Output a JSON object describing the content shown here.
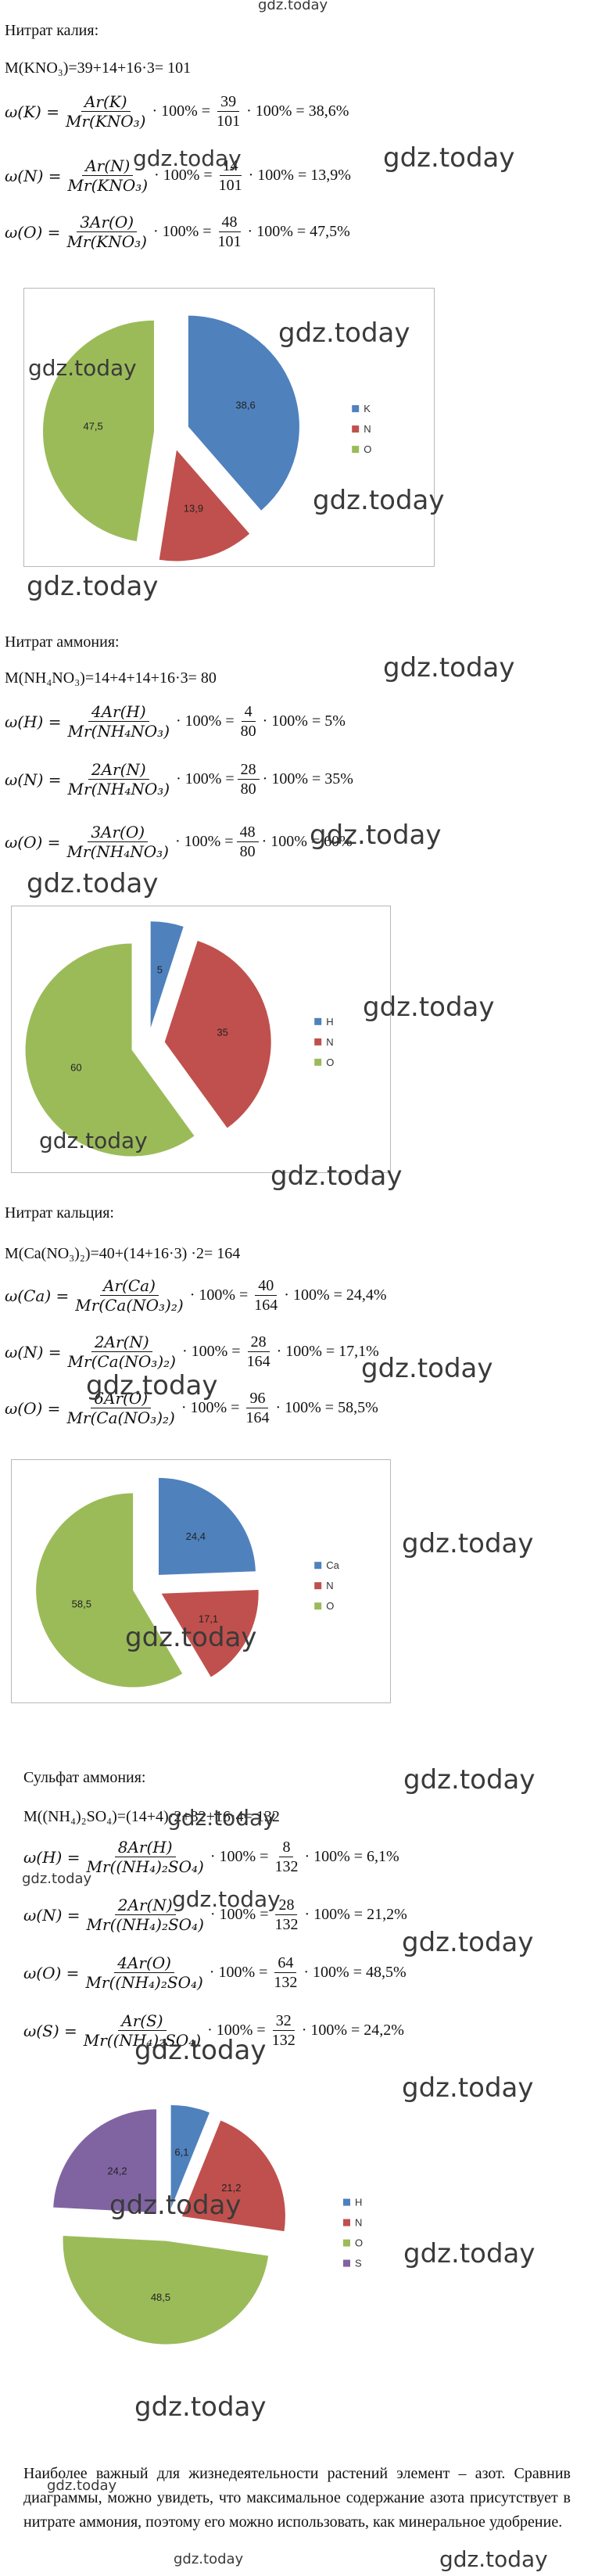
{
  "watermark": {
    "text": "gdz.today"
  },
  "sections": [
    {
      "title": "Нитрат  калия:",
      "molar": "M(KNO₃)=39+14+16·3= 101",
      "formulas": [
        {
          "lhs": "ω(K) =",
          "num": "Ar(K)",
          "den": "Mr(KNO₃)",
          "mid": "· 100% =",
          "num2": "39",
          "den2": "101",
          "rhs": "· 100% = 38,6%"
        },
        {
          "lhs": "ω(N) =",
          "num": "Ar(N)",
          "den": "Mr(KNO₃)",
          "mid": "· 100% =",
          "num2": "14",
          "den2": "101",
          "rhs": "· 100% = 13,9%"
        },
        {
          "lhs": "ω(O) =",
          "num": "3Ar(O)",
          "den": "Mr(KNO₃)",
          "mid": "· 100% =",
          "num2": "48",
          "den2": "101",
          "rhs": "· 100% = 47,5%"
        }
      ]
    },
    {
      "title": "Нитрат  аммония:",
      "molar": "M(NH₄NO₃)=14+4+14+16·3= 80",
      "formulas": [
        {
          "lhs": "ω(H) =",
          "num": "4Ar(H)",
          "den": "Mr(NH₄NO₃)",
          "mid": "· 100% =",
          "num2": "4",
          "den2": "80",
          "rhs": "· 100% = 5%"
        },
        {
          "lhs": "ω(N) =",
          "num": "2Ar(N)",
          "den": "Mr(NH₄NO₃)",
          "mid": "· 100% =",
          "num2": "28",
          "den2": "80",
          "rhs": "· 100% = 35%"
        },
        {
          "lhs": "ω(O) =",
          "num": "3Ar(O)",
          "den": "Mr(NH₄NO₃)",
          "mid": "· 100% =",
          "num2": "48",
          "den2": "80",
          "rhs": "· 100% = 60%"
        }
      ]
    },
    {
      "title": "Нитрат  кальция:",
      "molar": "M(Ca(NO₃)₂)=40+(14+16·3) ·2= 164",
      "formulas": [
        {
          "lhs": "ω(Ca) =",
          "num": "Ar(Ca)",
          "den": "Mr(Ca(NO₃)₂)",
          "mid": "· 100% =",
          "num2": "40",
          "den2": "164",
          "rhs": "· 100% = 24,4%"
        },
        {
          "lhs": "ω(N) =",
          "num": "2Ar(N)",
          "den": "Mr(Ca(NO₃)₂)",
          "mid": "· 100% =",
          "num2": "28",
          "den2": "164",
          "rhs": "· 100% = 17,1%"
        },
        {
          "lhs": "ω(O) =",
          "num": "6Ar(O)",
          "den": "Mr(Ca(NO₃)₂)",
          "mid": "· 100% =",
          "num2": "96",
          "den2": "164",
          "rhs": "· 100% = 58,5%"
        }
      ]
    },
    {
      "title": "Сульфат  аммония:",
      "molar": "M((NH₄)₂SO₄)=(14+4)·2+32+16·4= 132",
      "formulas": [
        {
          "lhs": "ω(H) =",
          "num": "8Ar(H)",
          "den": "Mr((NH₄)₂SO₄)",
          "mid": "· 100% =",
          "num2": "8",
          "den2": "132",
          "rhs": "· 100% = 6,1%"
        },
        {
          "lhs": "ω(N) =",
          "num": "2Ar(N)",
          "den": "Mr((NH₄)₂SO₄)",
          "mid": "· 100% =",
          "num2": "28",
          "den2": "132",
          "rhs": "· 100% = 21,2%"
        },
        {
          "lhs": "ω(O) =",
          "num": "4Ar(O)",
          "den": "Mr((NH₄)₂SO₄)",
          "mid": "· 100% =",
          "num2": "64",
          "den2": "132",
          "rhs": "· 100% = 48,5%"
        },
        {
          "lhs": "ω(S) =",
          "num": "Ar(S)",
          "den": "Mr((NH₄)₂SO₄)",
          "mid": "· 100% =",
          "num2": "32",
          "den2": "132",
          "rhs": "· 100% = 24,2%"
        }
      ]
    }
  ],
  "conclusion": "Наиболее важный для жизнедеятельности растений элемент – азот. Сравнив диаграммы, можно увидеть, что максимальное содержание азота присутствует в нитрате аммония, поэтому его можно использовать, как минеральное удобрение.",
  "colors": {
    "blue": "#4f81bd",
    "red": "#c0504d",
    "green": "#9bbb59",
    "purple": "#8064a2"
  },
  "chart_data": [
    {
      "type": "pie",
      "categories": [
        "K",
        "N",
        "O"
      ],
      "values": [
        38.6,
        13.9,
        47.5
      ],
      "labels": [
        "38,6",
        "13,9",
        "47,5"
      ],
      "legend": "right"
    },
    {
      "type": "pie",
      "categories": [
        "H",
        "N",
        "O"
      ],
      "values": [
        5,
        35,
        60
      ],
      "labels": [
        "5",
        "35",
        "60"
      ],
      "legend": "right"
    },
    {
      "type": "pie",
      "categories": [
        "Ca",
        "N",
        "O"
      ],
      "values": [
        24.4,
        17.1,
        58.5
      ],
      "labels": [
        "24,4",
        "17,1",
        "58,5"
      ],
      "legend": "right"
    },
    {
      "type": "pie",
      "categories": [
        "H",
        "N",
        "O",
        "S"
      ],
      "values": [
        6.1,
        21.2,
        48.5,
        24.2
      ],
      "labels": [
        "6,1",
        "21,2",
        "48,5",
        "24,2"
      ],
      "legend": "right"
    }
  ]
}
